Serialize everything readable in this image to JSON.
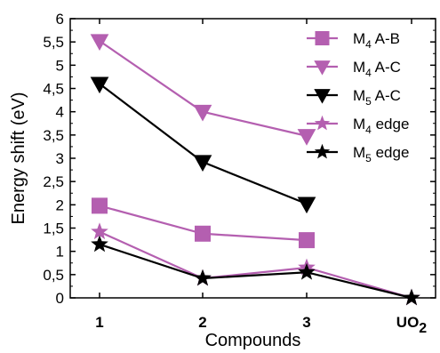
{
  "chart_data": {
    "type": "line",
    "xlabel": "Compounds",
    "ylabel": "Energy shift (eV)",
    "ylim": [
      0,
      6
    ],
    "y_ticks": [
      "0",
      "0,5",
      "1",
      "1,5",
      "2",
      "2,5",
      "3",
      "3,5",
      "4",
      "4,5",
      "5",
      "5,5",
      "6"
    ],
    "categories": [
      {
        "main": "1",
        "sub": ""
      },
      {
        "main": "2",
        "sub": ""
      },
      {
        "main": "3",
        "sub": ""
      },
      {
        "main": "UO",
        "sub": "2"
      }
    ],
    "grid": false,
    "legend_position": "top-right",
    "series": [
      {
        "name_main": "M",
        "name_sub": "4",
        "name_rest": " A-B",
        "marker": "square",
        "color": "#b45fb0",
        "values": [
          1.98,
          1.38,
          1.24,
          null
        ]
      },
      {
        "name_main": "M",
        "name_sub": "4",
        "name_rest": " A-C",
        "marker": "triangle-down",
        "color": "#b45fb0",
        "values": [
          5.52,
          4.0,
          3.48,
          null
        ]
      },
      {
        "name_main": "M",
        "name_sub": "5",
        "name_rest": " A-C",
        "marker": "triangle-down",
        "color": "#000000",
        "values": [
          4.6,
          2.92,
          2.02,
          null
        ]
      },
      {
        "name_main": "M",
        "name_sub": "4",
        "name_rest": " edge",
        "marker": "star",
        "color": "#b45fb0",
        "values": [
          1.42,
          0.42,
          0.65,
          0.0
        ]
      },
      {
        "name_main": "M",
        "name_sub": "5",
        "name_rest": " edge",
        "marker": "star",
        "color": "#000000",
        "values": [
          1.15,
          0.42,
          0.55,
          0.0
        ]
      }
    ]
  }
}
